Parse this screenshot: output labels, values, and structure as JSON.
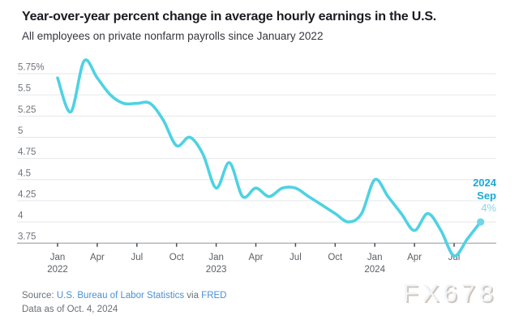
{
  "header": {
    "title": "Year-over-year percent change in average hourly earnings in the U.S.",
    "subtitle": "All employees on private nonfarm payrolls since January 2022"
  },
  "chart_data": {
    "type": "line",
    "title": "Year-over-year percent change in average hourly earnings in the U.S.",
    "subtitle": "All employees on private nonfarm payrolls since January 2022",
    "unit": "percent",
    "x": [
      "Jan 2022",
      "Feb 2022",
      "Mar 2022",
      "Apr 2022",
      "May 2022",
      "Jun 2022",
      "Jul 2022",
      "Aug 2022",
      "Sep 2022",
      "Oct 2022",
      "Nov 2022",
      "Dec 2022",
      "Jan 2023",
      "Feb 2023",
      "Mar 2023",
      "Apr 2023",
      "May 2023",
      "Jun 2023",
      "Jul 2023",
      "Aug 2023",
      "Sep 2023",
      "Oct 2023",
      "Nov 2023",
      "Dec 2023",
      "Jan 2024",
      "Feb 2024",
      "Mar 2024",
      "Apr 2024",
      "May 2024",
      "Jun 2024",
      "Jul 2024",
      "Aug 2024",
      "Sep 2024"
    ],
    "values": [
      5.7,
      5.3,
      5.9,
      5.7,
      5.5,
      5.4,
      5.4,
      5.4,
      5.2,
      4.9,
      5.0,
      4.8,
      4.4,
      4.7,
      4.3,
      4.4,
      4.3,
      4.4,
      4.4,
      4.3,
      4.2,
      4.1,
      4.0,
      4.1,
      4.5,
      4.3,
      4.1,
      3.9,
      4.1,
      3.9,
      3.6,
      3.8,
      4.0
    ],
    "ylim": [
      3.75,
      5.95
    ],
    "grid": true,
    "legend": "none",
    "yticks": [
      {
        "label": "5.75%",
        "value": 5.75
      },
      {
        "label": "5.5",
        "value": 5.5
      },
      {
        "label": "5.25",
        "value": 5.25
      },
      {
        "label": "5",
        "value": 5.0
      },
      {
        "label": "4.75",
        "value": 4.75
      },
      {
        "label": "4.5",
        "value": 4.5
      },
      {
        "label": "4.25",
        "value": 4.25
      },
      {
        "label": "4",
        "value": 4.0
      },
      {
        "label": "3.75",
        "value": 3.75
      }
    ],
    "xticks": [
      {
        "month_index": 0,
        "label": "Jan",
        "year": "2022"
      },
      {
        "month_index": 3,
        "label": "Apr",
        "year": ""
      },
      {
        "month_index": 6,
        "label": "Jul",
        "year": ""
      },
      {
        "month_index": 9,
        "label": "Oct",
        "year": ""
      },
      {
        "month_index": 12,
        "label": "Jan",
        "year": "2023"
      },
      {
        "month_index": 15,
        "label": "Apr",
        "year": ""
      },
      {
        "month_index": 18,
        "label": "Jul",
        "year": ""
      },
      {
        "month_index": 21,
        "label": "Oct",
        "year": ""
      },
      {
        "month_index": 24,
        "label": "Jan",
        "year": "2024"
      },
      {
        "month_index": 27,
        "label": "Apr",
        "year": ""
      },
      {
        "month_index": 30,
        "label": "Jul",
        "year": ""
      }
    ],
    "line_color": "#4ed2e3",
    "end_point": {
      "month": "Sep 2024",
      "value": 4.0
    }
  },
  "annotation": {
    "year": "2024",
    "month": "Sep",
    "value": "4%"
  },
  "footer": {
    "source_label": "Source: ",
    "source_link": "U.S. Bureau of Labor Statistics",
    "via_text": " via ",
    "via_link": "FRED",
    "data_as_of": "Data as of Oct. 4, 2024"
  },
  "watermark": "FX678",
  "colors": {
    "line": "#4ed2e3",
    "end_dot": "#6ed6e7",
    "grid": "#e4e6e9",
    "axis": "#9aa1a8",
    "tick": "#4a4e54",
    "axis_label": "#5a5e64",
    "y_label": "#6e737b",
    "annotation_strong": "#1ca9d6",
    "annotation_value": "#85d5e8",
    "link": "#4a90d2",
    "footer_text": "#6b7076"
  }
}
